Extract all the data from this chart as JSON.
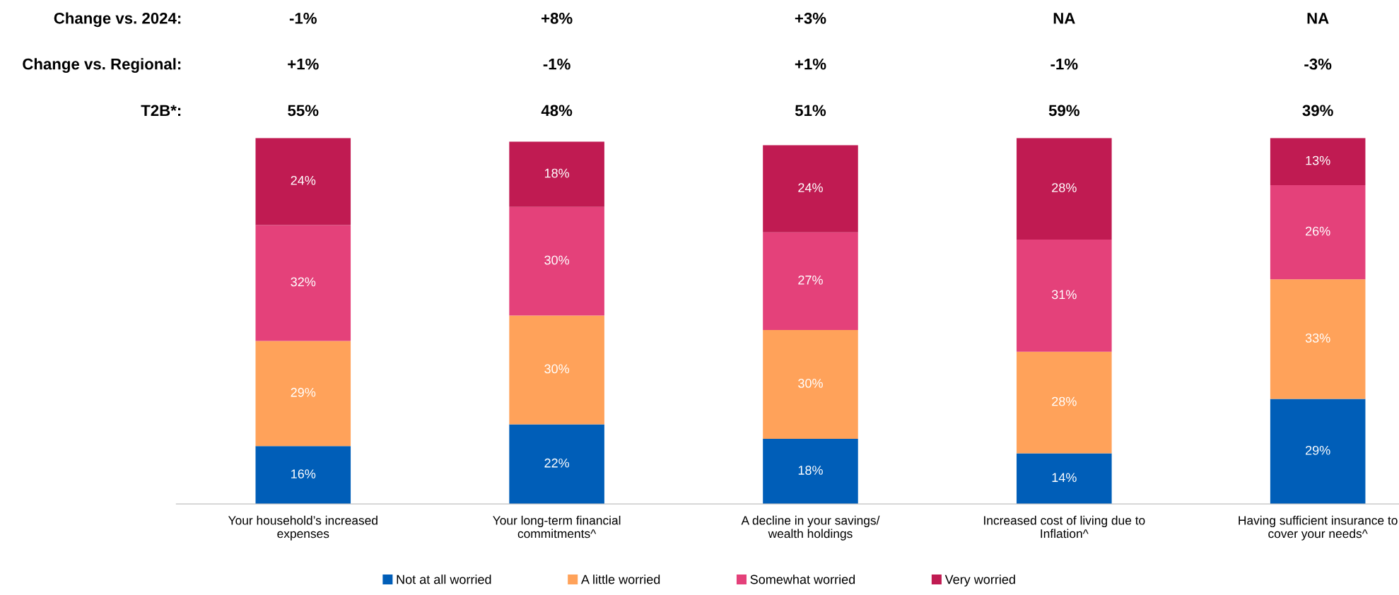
{
  "chart_data": {
    "type": "bar",
    "stacked": true,
    "legend": "bottom",
    "grid": false,
    "tick_labels": "x",
    "categories": [
      "Your household’s increased\nexpenses",
      "Your long-term financial\ncommitments^",
      "A decline in your savings/\nwealth holdings",
      "Increased cost of living due to\nInflation^",
      "Having sufficient insurance to\ncover your needs^"
    ],
    "series": [
      {
        "name": "Not at all worried",
        "color": "#005eb8",
        "values": [
          16,
          22,
          18,
          14,
          29
        ],
        "value_labels": [
          "16%",
          "22%",
          "18%",
          "14%",
          "29%"
        ]
      },
      {
        "name": "A little worried",
        "color": "#ffa25a",
        "values": [
          29,
          30,
          30,
          28,
          33
        ],
        "value_labels": [
          "29%",
          "30%",
          "30%",
          "28%",
          "33%"
        ]
      },
      {
        "name": "Somewhat worried",
        "color": "#e4417a",
        "values": [
          32,
          30,
          27,
          31,
          26
        ],
        "value_labels": [
          "32%",
          "30%",
          "27%",
          "31%",
          "26%"
        ]
      },
      {
        "name": "Very worried",
        "color": "#c01b52",
        "values": [
          24,
          18,
          24,
          28,
          13
        ],
        "value_labels": [
          "24%",
          "18%",
          "24%",
          "28%",
          "13%"
        ]
      }
    ],
    "annotations": [
      "Change vs. 2024:",
      "-1%",
      "+8%",
      "+3%",
      "NA",
      "NA",
      "Change vs. Regional:",
      "+1%",
      "-1%",
      "+1%",
      "-1%",
      "-3%",
      "T2B*:",
      "55%",
      "48%",
      "51%",
      "59%",
      "39%"
    ]
  }
}
